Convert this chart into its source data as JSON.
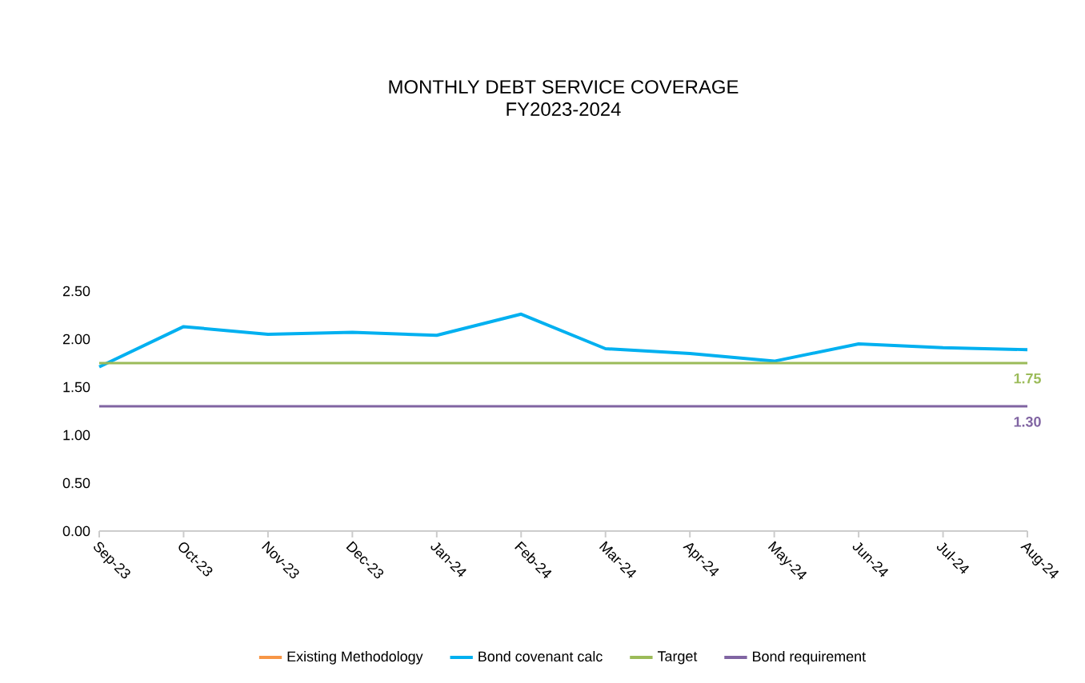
{
  "chart_data": {
    "type": "line",
    "title": "MONTHLY DEBT SERVICE COVERAGE\nFY2023-2024",
    "categories": [
      "Sep-23",
      "Oct-23",
      "Nov-23",
      "Dec-23",
      "Jan-24",
      "Feb-24",
      "Mar-24",
      "Apr-24",
      "May-24",
      "Jun-24",
      "Jul-24",
      "Aug-24"
    ],
    "series": [
      {
        "name": "Existing Methodology",
        "color": "#f79646",
        "values": [
          null,
          null,
          null,
          null,
          null,
          null,
          null,
          null,
          null,
          null,
          null,
          null
        ]
      },
      {
        "name": "Bond covenant calc",
        "color": "#00b0f0",
        "values": [
          1.71,
          2.13,
          2.05,
          2.07,
          2.04,
          2.26,
          1.9,
          1.85,
          1.77,
          1.95,
          1.91,
          1.89
        ]
      },
      {
        "name": "Target",
        "color": "#9bbb59",
        "values": [
          1.75,
          1.75,
          1.75,
          1.75,
          1.75,
          1.75,
          1.75,
          1.75,
          1.75,
          1.75,
          1.75,
          1.75
        ],
        "value_labels": [
          null,
          null,
          null,
          null,
          null,
          null,
          null,
          null,
          null,
          null,
          null,
          "1.75"
        ]
      },
      {
        "name": "Bond requirement",
        "color": "#8064a2",
        "values": [
          1.3,
          1.3,
          1.3,
          1.3,
          1.3,
          1.3,
          1.3,
          1.3,
          1.3,
          1.3,
          1.3,
          1.3
        ],
        "value_labels": [
          null,
          null,
          null,
          null,
          null,
          null,
          null,
          null,
          null,
          null,
          null,
          "1.30"
        ]
      }
    ],
    "ylim": [
      0,
      2.5
    ],
    "yticks": [
      {
        "value": 0,
        "label": "0.00"
      },
      {
        "value": 0.5,
        "label": "0.50"
      },
      {
        "value": 1,
        "label": "1.00"
      },
      {
        "value": 1.5,
        "label": "1.50"
      },
      {
        "value": 2,
        "label": "2.00"
      },
      {
        "value": 2.5,
        "label": "2.50"
      }
    ],
    "grid": false,
    "legend": "bottom",
    "marker": "none",
    "line_style": "solid"
  }
}
